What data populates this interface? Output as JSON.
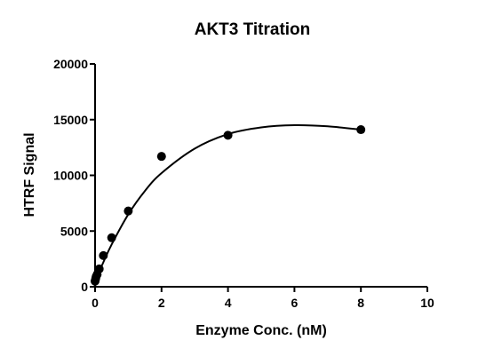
{
  "chart_data": {
    "type": "scatter",
    "title": "AKT3 Titration",
    "xlabel": "Enzyme Conc. (nM)",
    "ylabel": "HTRF Signal",
    "xlim": [
      0,
      10
    ],
    "ylim": [
      0,
      20000
    ],
    "xticks": [
      "0",
      "2",
      "4",
      "6",
      "8",
      "10"
    ],
    "yticks": [
      "0",
      "5000",
      "10000",
      "15000",
      "20000"
    ],
    "grid": false,
    "legend": "none",
    "series": [
      {
        "x": [
          0.0,
          0.016,
          0.031,
          0.0625,
          0.125,
          0.25,
          0.5,
          1,
          2,
          4,
          8
        ],
        "y": [
          500,
          700,
          900,
          1100,
          1600,
          2800,
          4400,
          6800,
          11700,
          13600,
          14100
        ]
      }
    ],
    "fit_curve": [
      [
        0,
        450
      ],
      [
        0.25,
        2200
      ],
      [
        0.5,
        3800
      ],
      [
        1,
        6500
      ],
      [
        1.5,
        8600
      ],
      [
        2,
        10200
      ],
      [
        3,
        12400
      ],
      [
        4,
        13700
      ],
      [
        5,
        14300
      ],
      [
        6,
        14500
      ],
      [
        7,
        14400
      ],
      [
        8,
        14100
      ]
    ],
    "marker_color": "#000000",
    "line_color": "#000000"
  }
}
